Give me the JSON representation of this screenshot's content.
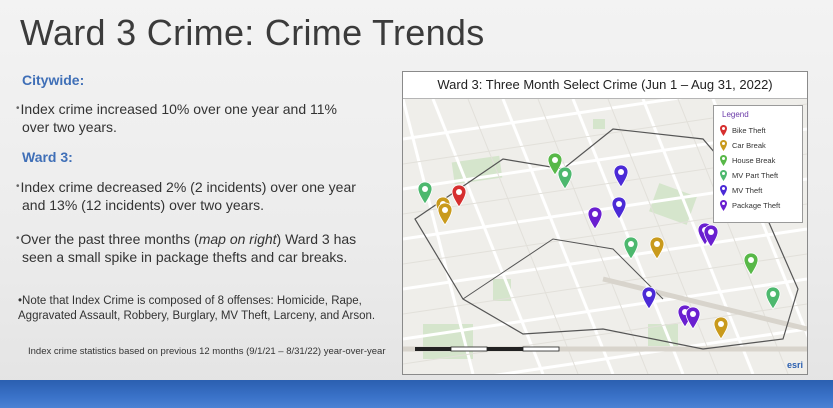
{
  "title": "Ward 3 Crime: Crime Trends",
  "sections": {
    "citywide_heading": "Citywide:",
    "citywide_text_1": "Index crime increased 10% over one year and 11%",
    "citywide_text_2": "over two years.",
    "ward_heading": "Ward 3:",
    "ward_text_1": "Index crime decreased 2% (2 incidents) over one year",
    "ward_text_2": "and 13% (12 incidents) over two years.",
    "ward_text_3a": "Over the past three months (",
    "ward_text_3b": "map on right",
    "ward_text_3c": ") Ward 3 has",
    "ward_text_4": "seen a small spike in package thefts and car breaks.",
    "note_1": "Note that Index Crime is composed of 8 offenses: Homicide, Rape,",
    "note_2": "Aggravated Assault, Robbery, Burglary, MV Theft, Larceny, and Arson.",
    "footnote": "Index crime statistics based on previous 12 months (9/1/21 – 8/31/22) year-over-year"
  },
  "map": {
    "title": "Ward 3: Three Month Select Crime (Jun 1 – Aug 31, 2022)",
    "legend_title": "Legend",
    "legend": [
      {
        "label": "Bike Theft",
        "color": "#d62f2f"
      },
      {
        "label": "Car Break",
        "color": "#c99a1c"
      },
      {
        "label": "House Break",
        "color": "#58b848"
      },
      {
        "label": "MV Part Theft",
        "color": "#4db86e"
      },
      {
        "label": "MV Theft",
        "color": "#4b2ad6"
      },
      {
        "label": "Package Theft",
        "color": "#6a1fd0"
      }
    ],
    "attribution": "esri"
  }
}
